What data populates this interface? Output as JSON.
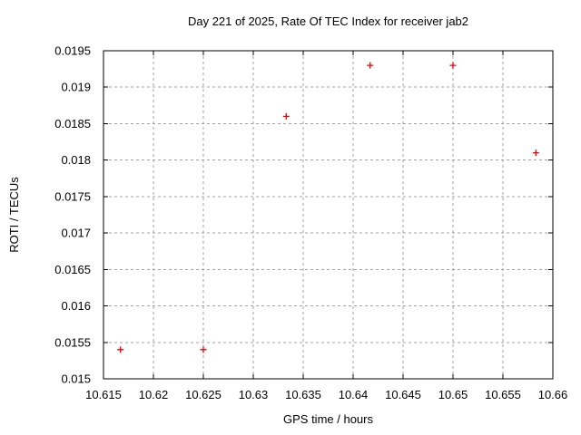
{
  "chart_data": {
    "type": "scatter",
    "title": "Day 221 of 2025, Rate Of TEC Index for receiver jab2",
    "xlabel": "GPS time / hours",
    "ylabel": "ROTI / TECUs",
    "xlim": [
      10.615,
      10.66
    ],
    "ylim": [
      0.015,
      0.0195
    ],
    "grid": "dashed",
    "legend_position": "none",
    "marker": "plus",
    "marker_color": "#ee0000",
    "grid_color": "#a0a0a0",
    "axis_color": "#000000",
    "background_color": "#ffffff",
    "xticks": [
      {
        "value": 10.615,
        "label": "10.615"
      },
      {
        "value": 10.62,
        "label": "10.62"
      },
      {
        "value": 10.625,
        "label": "10.625"
      },
      {
        "value": 10.63,
        "label": "10.63"
      },
      {
        "value": 10.635,
        "label": "10.635"
      },
      {
        "value": 10.64,
        "label": "10.64"
      },
      {
        "value": 10.645,
        "label": "10.645"
      },
      {
        "value": 10.65,
        "label": "10.65"
      },
      {
        "value": 10.655,
        "label": "10.655"
      },
      {
        "value": 10.66,
        "label": "10.66"
      }
    ],
    "yticks": [
      {
        "value": 0.015,
        "label": "0.015"
      },
      {
        "value": 0.0155,
        "label": "0.0155"
      },
      {
        "value": 0.016,
        "label": "0.016"
      },
      {
        "value": 0.0165,
        "label": "0.0165"
      },
      {
        "value": 0.017,
        "label": "0.017"
      },
      {
        "value": 0.0175,
        "label": "0.0175"
      },
      {
        "value": 0.018,
        "label": "0.018"
      },
      {
        "value": 0.0185,
        "label": "0.0185"
      },
      {
        "value": 0.019,
        "label": "0.019"
      },
      {
        "value": 0.0195,
        "label": "0.0195"
      }
    ],
    "points": [
      {
        "x": 10.6167,
        "y": 0.0154
      },
      {
        "x": 10.625,
        "y": 0.0154
      },
      {
        "x": 10.6333,
        "y": 0.0186
      },
      {
        "x": 10.6417,
        "y": 0.0193
      },
      {
        "x": 10.65,
        "y": 0.0193
      },
      {
        "x": 10.6583,
        "y": 0.0181
      }
    ]
  }
}
